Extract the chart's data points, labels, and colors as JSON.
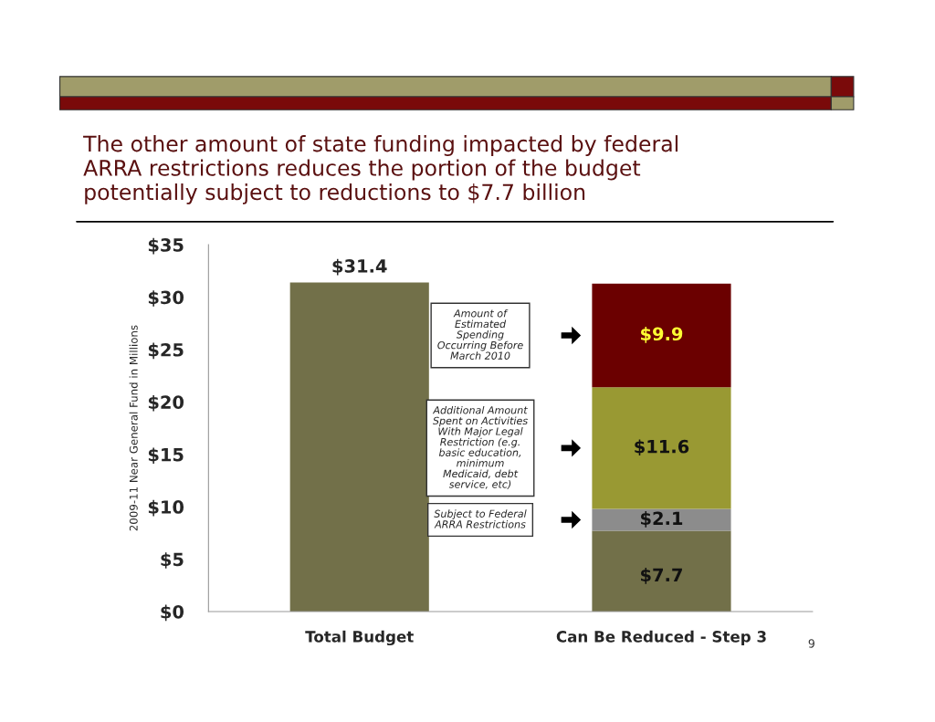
{
  "chart_data": {
    "type": "bar",
    "stacked": true,
    "title": "The other amount of state funding impacted by federal\nARRA restrictions reduces the portion of the budget\npotentially subject to reductions to $7.7 billion",
    "ylabel": "2009-11 Near General Fund in Millions",
    "categories": [
      "Total Budget",
      "Can Be Reduced - Step 3"
    ],
    "series": [
      {
        "color": "#727049",
        "values": [
          31.4,
          7.7
        ],
        "value_labels": [
          "$31.4",
          "$7.7"
        ]
      },
      {
        "color": "#8c8c8c",
        "values": [
          null,
          2.1
        ],
        "value_labels": [
          null,
          "$2.1"
        ]
      },
      {
        "color": "#999933",
        "values": [
          null,
          11.6
        ],
        "value_labels": [
          null,
          "$11.6"
        ]
      },
      {
        "color": "#6b0000",
        "values": [
          null,
          9.9
        ],
        "value_labels": [
          null,
          "$9.9"
        ]
      }
    ],
    "ylim": [
      0,
      35
    ],
    "yticks": [
      {
        "value": 0,
        "label": "$0"
      },
      {
        "value": 5,
        "label": "$5"
      },
      {
        "value": 10,
        "label": "$10"
      },
      {
        "value": 15,
        "label": "$15"
      },
      {
        "value": 20,
        "label": "$20"
      },
      {
        "value": 25,
        "label": "$25"
      },
      {
        "value": 30,
        "label": "$30"
      },
      {
        "value": 35,
        "label": "$35"
      }
    ],
    "grid": false,
    "legend": false,
    "annotations": [
      "Amount of\nEstimated\nSpending\nOccurring Before\nMarch 2010",
      "Additional Amount\nSpent on Activities\nWith Major Legal\nRestriction (e.g.\nbasic education,\nminimum\nMedicaid, debt\nservice, etc)",
      "Subject to Federal\nARRA Restrictions",
      "9"
    ]
  }
}
